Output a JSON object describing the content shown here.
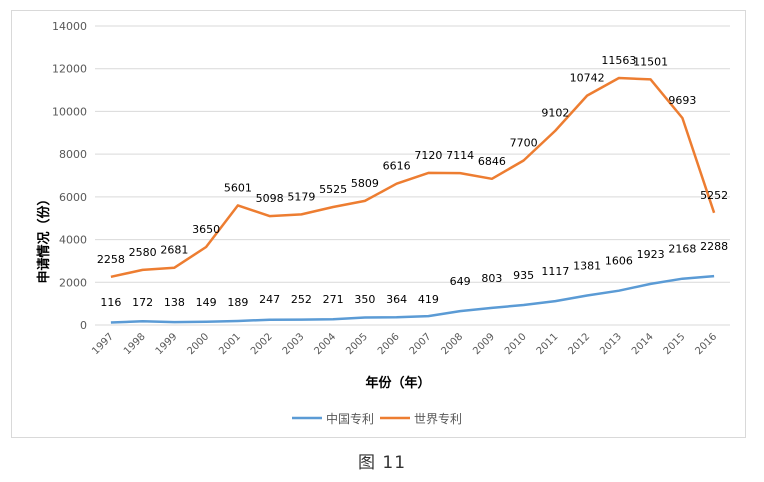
{
  "chart_data": {
    "type": "line",
    "title": "",
    "xlabel": "年份（年）",
    "ylabel": "申请情况（份）",
    "ylim": [
      0,
      14000
    ],
    "yticks": [
      0,
      2000,
      4000,
      6000,
      8000,
      10000,
      12000,
      14000
    ],
    "ytick_labels": [
      "0",
      "2000",
      "4000",
      "6000",
      "8000",
      "10000",
      "12000",
      "14000"
    ],
    "grid": true,
    "legend_position": "bottom",
    "categories": [
      "1997",
      "1998",
      "1999",
      "2000",
      "2001",
      "2002",
      "2003",
      "2004",
      "2005",
      "2006",
      "2007",
      "2008",
      "2009",
      "2010",
      "2011",
      "2012",
      "2013",
      "2014",
      "2015",
      "2016"
    ],
    "series": [
      {
        "name": "中国专利",
        "color": "#5B9BD5",
        "values": [
          116,
          172,
          138,
          149,
          189,
          247,
          252,
          271,
          350,
          364,
          419,
          649,
          803,
          935,
          1117,
          1381,
          1606,
          1923,
          2168,
          2288
        ],
        "labels": [
          "116",
          "172",
          "138",
          "149",
          "189",
          "247",
          "252",
          "271",
          "350",
          "364",
          "419",
          "649",
          "803",
          "935",
          "1117",
          "1381",
          "1606",
          "1923",
          "2168",
          "2288"
        ]
      },
      {
        "name": "世界专利",
        "color": "#ED7D31",
        "values": [
          2258,
          2580,
          2681,
          3650,
          5601,
          5098,
          5179,
          5525,
          5809,
          6616,
          7120,
          7114,
          6846,
          7700,
          9102,
          10742,
          11563,
          11501,
          9693,
          5252
        ],
        "labels": [
          "2258",
          "2580",
          "2681",
          "3650",
          "5601",
          "5098",
          "5179",
          "5525",
          "5809",
          "6616",
          "7120",
          "7114",
          "6846",
          "7700",
          "9102",
          "10742",
          "11563",
          "11501",
          "9693",
          "5252"
        ]
      }
    ]
  },
  "caption": "图 11"
}
